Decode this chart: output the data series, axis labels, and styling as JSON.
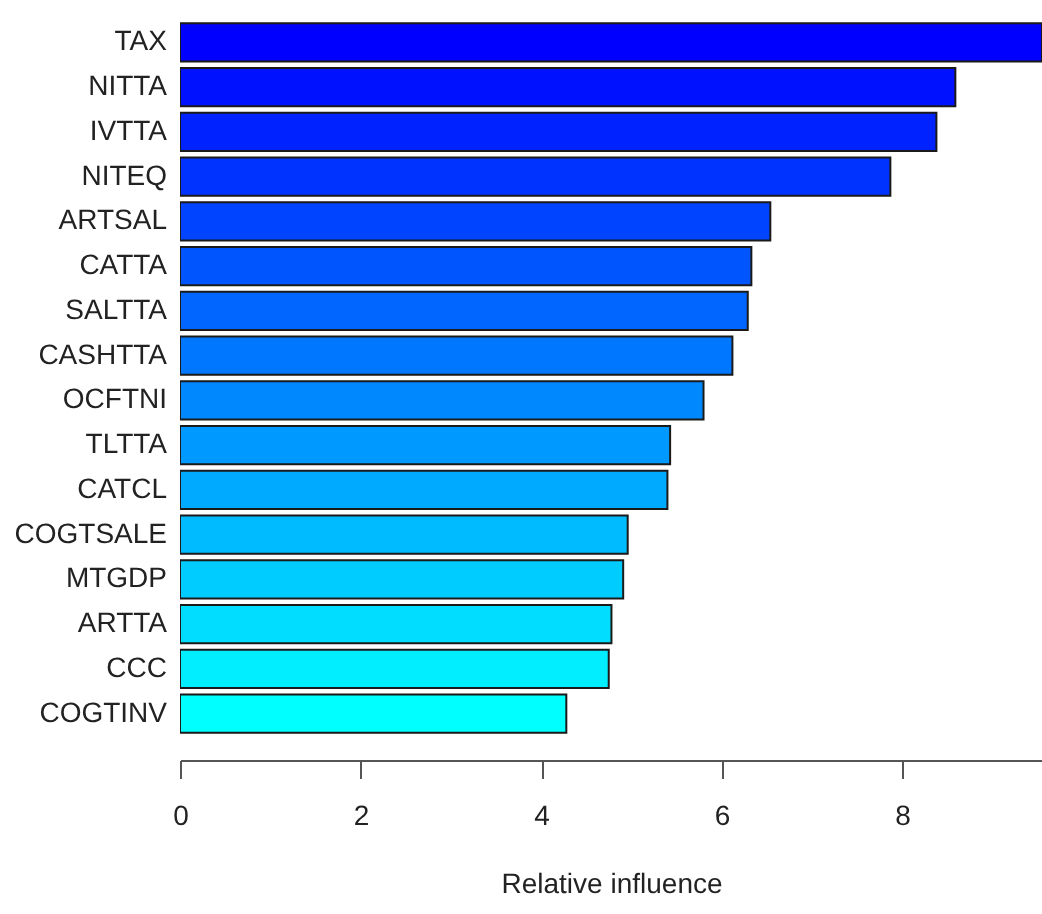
{
  "chart_data": {
    "type": "bar",
    "orientation": "horizontal",
    "xlabel": "Relative influence",
    "categories": [
      "TAX",
      "NITTA",
      "IVTTA",
      "NITEQ",
      "ARTSAL",
      "CATTA",
      "SALTTA",
      "CASHTTA",
      "OCFTNI",
      "TLTTA",
      "CATCL",
      "COGTSALE",
      "MTGDP",
      "ARTTA",
      "CCC",
      "COGTINV"
    ],
    "values": [
      9.55,
      8.59,
      8.38,
      7.87,
      6.54,
      6.33,
      6.29,
      6.12,
      5.8,
      5.43,
      5.4,
      4.96,
      4.91,
      4.78,
      4.75,
      4.28
    ],
    "colors": [
      "#0000ff",
      "#0011ff",
      "#0022ff",
      "#0033ff",
      "#0044ff",
      "#0055ff",
      "#0066ff",
      "#0077ff",
      "#0088ff",
      "#0099ff",
      "#00aaff",
      "#00bbff",
      "#00ccff",
      "#00ddff",
      "#00eeff",
      "#00ffff"
    ],
    "xlim": [
      0,
      9.55
    ],
    "xticks": [
      0,
      2,
      4,
      6,
      8
    ]
  }
}
